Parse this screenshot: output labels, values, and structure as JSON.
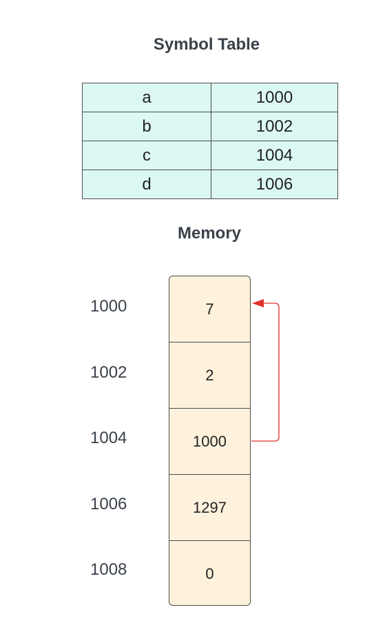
{
  "symbol_table": {
    "title": "Symbol Table",
    "rows": [
      {
        "name": "a",
        "address": "1000"
      },
      {
        "name": "b",
        "address": "1002"
      },
      {
        "name": "c",
        "address": "1004"
      },
      {
        "name": "d",
        "address": "1006"
      }
    ]
  },
  "memory": {
    "title": "Memory",
    "cells": [
      {
        "address": "1000",
        "value": "7"
      },
      {
        "address": "1002",
        "value": "2"
      },
      {
        "address": "1004",
        "value": "1000"
      },
      {
        "address": "1006",
        "value": "1297"
      },
      {
        "address": "1008",
        "value": "0"
      }
    ],
    "pointer": {
      "from_address": "1004",
      "to_address": "1000",
      "color": "#e0302a"
    }
  },
  "colors": {
    "symbol_cell_bg": "#dcf8f2",
    "memory_cell_bg": "#fff2dc",
    "border": "#4a4a4a",
    "title_text": "#3a414a"
  }
}
